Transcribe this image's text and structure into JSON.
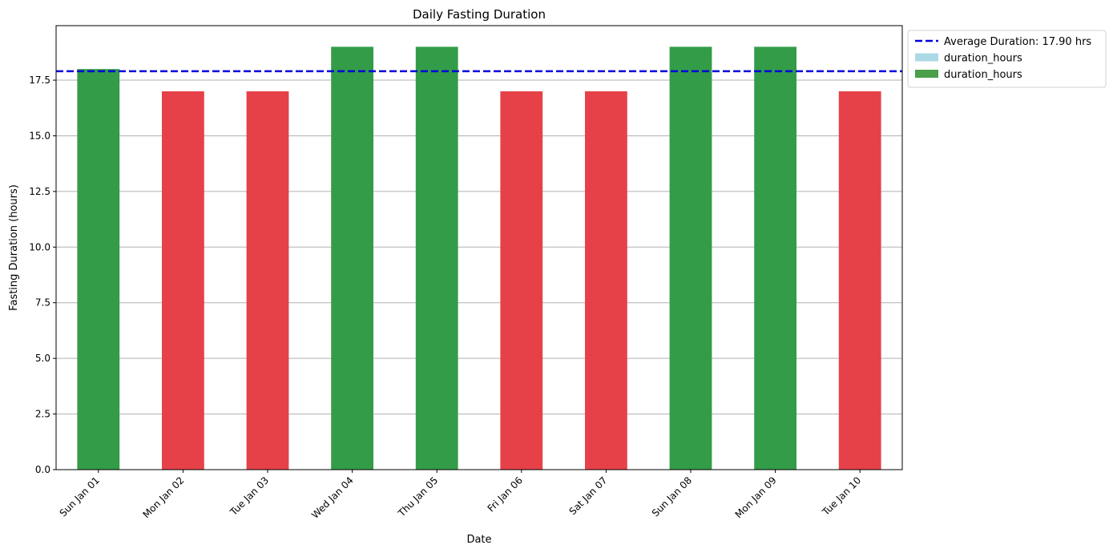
{
  "chart_data": {
    "type": "bar",
    "title": "Daily Fasting Duration",
    "xlabel": "Date",
    "ylabel": "Fasting Duration (hours)",
    "categories": [
      "Sun Jan 01",
      "Mon Jan 02",
      "Tue Jan 03",
      "Wed Jan 04",
      "Thu Jan 05",
      "Fri Jan 06",
      "Sat Jan 07",
      "Sun Jan 08",
      "Mon Jan 09",
      "Tue Jan 10"
    ],
    "values": [
      18,
      17,
      17,
      19,
      19,
      17,
      17,
      19,
      19,
      17
    ],
    "bar_colors": [
      "#339c48",
      "#e64149",
      "#e64149",
      "#339c48",
      "#339c48",
      "#e64149",
      "#e64149",
      "#339c48",
      "#339c48",
      "#e64149"
    ],
    "ylim": [
      0,
      19.95
    ],
    "yticks": [
      "0.0",
      "2.5",
      "5.0",
      "7.5",
      "10.0",
      "12.5",
      "15.0",
      "17.5"
    ],
    "ytick_values": [
      0,
      2.5,
      5,
      7.5,
      10,
      12.5,
      15,
      17.5
    ],
    "grid": "y",
    "reference_line": {
      "value": 17.9,
      "color": "#0000dd",
      "style": "dashed"
    },
    "legend": {
      "placement": "outside-upper-right",
      "entries": [
        {
          "label": "Average Duration: 17.90 hrs",
          "kind": "line",
          "color": "#0000dd"
        },
        {
          "label": "duration_hours",
          "kind": "patch",
          "color": "#add8e6"
        },
        {
          "label": "duration_hours",
          "kind": "patch",
          "color": "#4aa04a"
        }
      ]
    }
  }
}
